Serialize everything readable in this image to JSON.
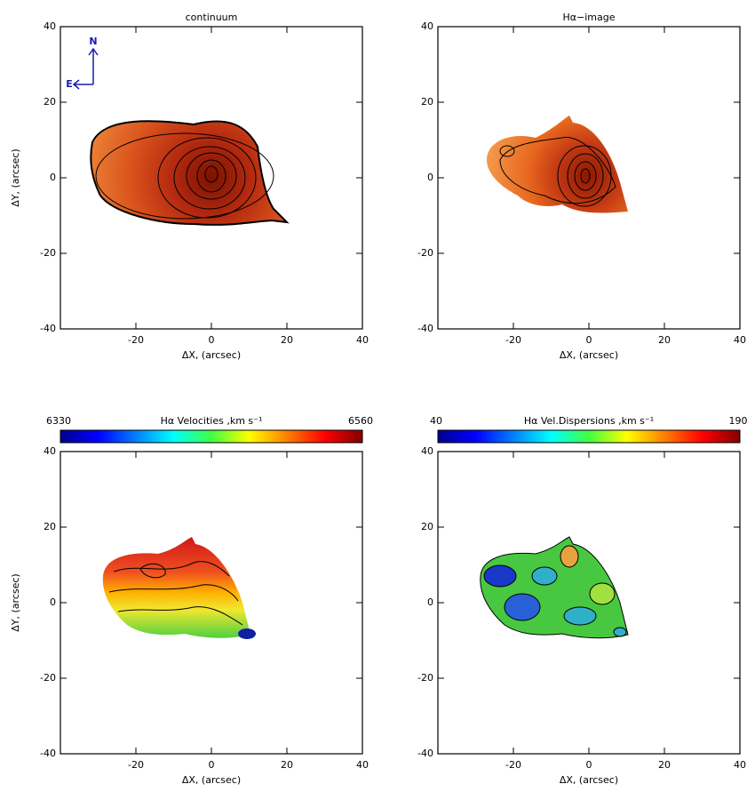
{
  "chart_data": [
    {
      "type": "image",
      "title": "continuum",
      "xlabel": "ΔX, (arcsec)",
      "ylabel": "ΔY, (arcsec)",
      "xlim": [
        -40,
        40
      ],
      "ylim": [
        -40,
        40
      ],
      "xticks": [
        -20,
        0,
        20,
        40
      ],
      "yticks": [
        -40,
        -20,
        0,
        20,
        40
      ],
      "compass": {
        "north": "N",
        "east": "E"
      }
    },
    {
      "type": "image",
      "title": "Hα−image",
      "xlabel": "ΔX, (arcsec)",
      "xlim": [
        -40,
        40
      ],
      "ylim": [
        -40,
        40
      ],
      "xticks": [
        -20,
        0,
        20,
        40
      ],
      "yticks": [
        -40,
        -20,
        0,
        20,
        40
      ]
    },
    {
      "type": "image",
      "title": "Hα Velocities ,km s⁻¹",
      "xlabel": "ΔX, (arcsec)",
      "ylabel": "ΔY, (arcsec)",
      "xlim": [
        -40,
        40
      ],
      "ylim": [
        -40,
        40
      ],
      "xticks": [
        -20,
        0,
        20,
        40
      ],
      "yticks": [
        -40,
        -20,
        0,
        20,
        40
      ],
      "colormap": "jet",
      "clim": [
        6330,
        6560
      ]
    },
    {
      "type": "image",
      "title": "Hα Vel.Dispersions ,km s⁻¹",
      "xlabel": "ΔX, (arcsec)",
      "xlim": [
        -40,
        40
      ],
      "ylim": [
        -40,
        40
      ],
      "xticks": [
        -20,
        0,
        20,
        40
      ],
      "yticks": [
        -40,
        -20,
        0,
        20,
        40
      ],
      "colormap": "jet",
      "clim": [
        40,
        190
      ]
    }
  ]
}
